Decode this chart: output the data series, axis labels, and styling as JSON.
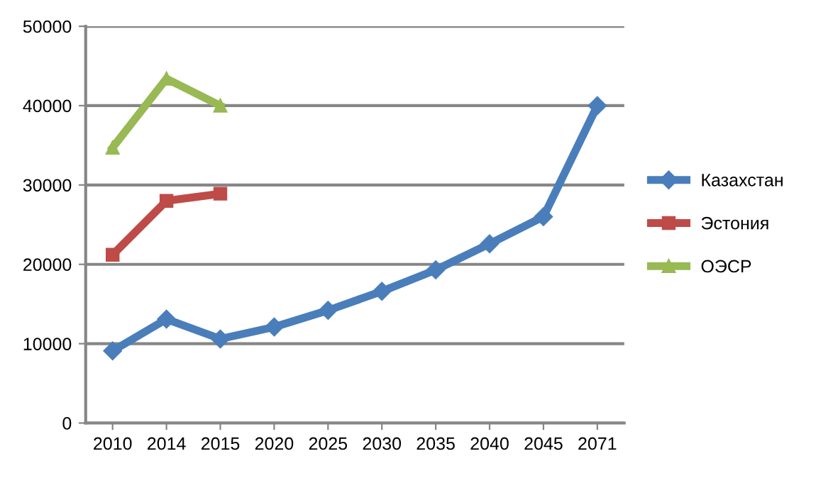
{
  "chart_data": {
    "type": "line",
    "categories": [
      "2010",
      "2014",
      "2015",
      "2020",
      "2025",
      "2030",
      "2035",
      "2040",
      "2045",
      "2071"
    ],
    "series": [
      {
        "name": "Казахстан",
        "color": "#4a7ebb",
        "marker": "diamond",
        "values": [
          9100,
          13100,
          10600,
          12100,
          14200,
          16600,
          19300,
          22600,
          26000,
          40000
        ]
      },
      {
        "name": "Эстония",
        "color": "#be4b48",
        "marker": "square",
        "values": [
          21200,
          28000,
          28900,
          null,
          null,
          null,
          null,
          null,
          null,
          null
        ]
      },
      {
        "name": "ОЭСР",
        "color": "#98b954",
        "marker": "triangle",
        "values": [
          34700,
          43400,
          40000,
          null,
          null,
          null,
          null,
          null,
          null,
          null
        ]
      }
    ],
    "ylim": [
      0,
      50000
    ],
    "yticks": [
      0,
      10000,
      20000,
      30000,
      40000,
      50000
    ],
    "grid": "y",
    "legend": "right",
    "line_style": "solid"
  }
}
